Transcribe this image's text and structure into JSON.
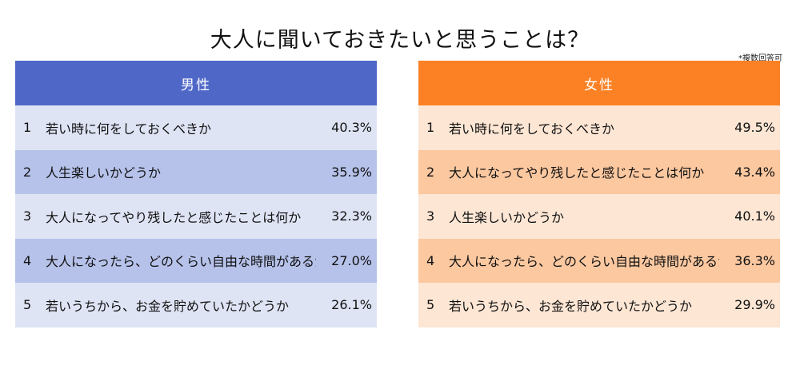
{
  "title": "大人に聞いておきたいと思うことは？",
  "note": "*複数回答可",
  "colors": {
    "male_header": "#4f68c8",
    "male_row_light": "#dfe4f5",
    "male_row_dark": "#b6c2ea",
    "female_header": "#fb8124",
    "female_row_light": "#fde6d4",
    "female_row_dark": "#fcc8a0"
  },
  "chart_data": [
    {
      "type": "table",
      "header": "男性",
      "rows": [
        {
          "rank": "1",
          "label": "若い時に何をしておくべきか",
          "value": 40.3,
          "value_text": "40.3%"
        },
        {
          "rank": "2",
          "label": "人生楽しいかどうか",
          "value": 35.9,
          "value_text": "35.9%"
        },
        {
          "rank": "3",
          "label": "大人になってやり残したと感じたことは何か",
          "value": 32.3,
          "value_text": "32.3%"
        },
        {
          "rank": "4",
          "label": "大人になったら、どのくらい自由な時間があるか",
          "value": 27.0,
          "value_text": "27.0%"
        },
        {
          "rank": "5",
          "label": "若いうちから、お金を貯めていたかどうか",
          "value": 26.1,
          "value_text": "26.1%"
        }
      ]
    },
    {
      "type": "table",
      "header": "女性",
      "rows": [
        {
          "rank": "1",
          "label": "若い時に何をしておくべきか",
          "value": 49.5,
          "value_text": "49.5%"
        },
        {
          "rank": "2",
          "label": "大人になってやり残したと感じたことは何か",
          "value": 43.4,
          "value_text": "43.4%"
        },
        {
          "rank": "3",
          "label": "人生楽しいかどうか",
          "value": 40.1,
          "value_text": "40.1%"
        },
        {
          "rank": "4",
          "label": "大人になったら、どのくらい自由な時間があるか",
          "value": 36.3,
          "value_text": "36.3%"
        },
        {
          "rank": "5",
          "label": "若いうちから、お金を貯めていたかどうか",
          "value": 29.9,
          "value_text": "29.9%"
        }
      ]
    }
  ]
}
